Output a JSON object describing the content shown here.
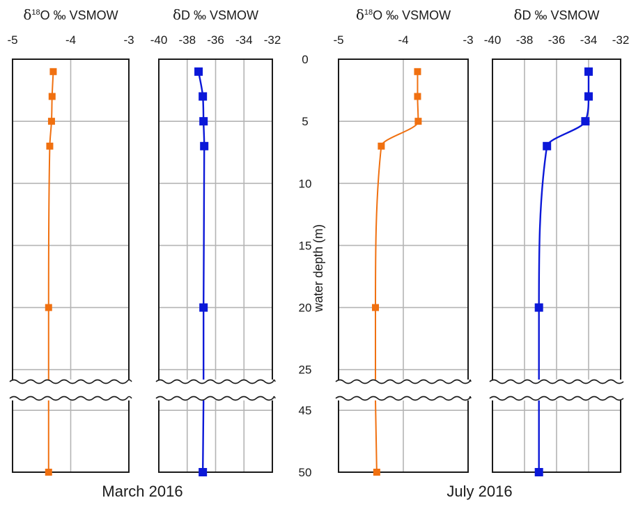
{
  "chart_data": {
    "type": "line",
    "y_axis": {
      "label": "water depth (m)",
      "upper_ticks": [
        "0",
        "5",
        "10",
        "15",
        "20",
        "25"
      ],
      "lower_ticks": [
        "45",
        "50"
      ],
      "upper_range": [
        0,
        25.8
      ],
      "lower_range": [
        44.2,
        50
      ],
      "broken": true,
      "inverted": true
    },
    "groups": [
      {
        "label": "March 2016",
        "panels": [
          {
            "title_prefix": "δ",
            "title_sup": "18",
            "title_suffix": "O ‰ VSMOW",
            "xlim": [
              -5,
              -3
            ],
            "xticks": [
              "-5",
              "-4",
              "-3"
            ],
            "color": "#f07010",
            "marker": "square-small",
            "depth": [
              1,
              3,
              5,
              7,
              20,
              50
            ],
            "values": [
              -4.3,
              -4.32,
              -4.33,
              -4.36,
              -4.38,
              -4.38
            ]
          },
          {
            "title_prefix": "δ",
            "title_sup": "",
            "title_suffix": "D ‰ VSMOW",
            "xlim": [
              -40,
              -32
            ],
            "xticks": [
              "-40",
              "-38",
              "-36",
              "-34",
              "-32"
            ],
            "color": "#0b18d8",
            "marker": "square",
            "depth": [
              1,
              3,
              5,
              7,
              20,
              50
            ],
            "values": [
              -37.2,
              -36.9,
              -36.85,
              -36.8,
              -36.85,
              -36.9
            ]
          }
        ]
      },
      {
        "label": "July 2016",
        "panels": [
          {
            "title_prefix": "δ",
            "title_sup": "18",
            "title_suffix": "O ‰ VSMOW",
            "xlim": [
              -5,
              -3
            ],
            "xticks": [
              "-5",
              "-4",
              "-3"
            ],
            "color": "#f07010",
            "marker": "square-small",
            "depth": [
              1,
              3,
              5,
              7,
              20,
              50
            ],
            "values": [
              -3.78,
              -3.78,
              -3.77,
              -4.34,
              -4.43,
              -4.41
            ]
          },
          {
            "title_prefix": "δ",
            "title_sup": "",
            "title_suffix": "D ‰ VSMOW",
            "xlim": [
              -40,
              -32
            ],
            "xticks": [
              "-40",
              "-38",
              "-36",
              "-34",
              "-32"
            ],
            "color": "#0b18d8",
            "marker": "square",
            "depth": [
              1,
              3,
              5,
              7,
              20,
              50
            ],
            "values": [
              -34,
              -34,
              -34.2,
              -36.6,
              -37.1,
              -37.1
            ]
          }
        ]
      }
    ],
    "grid": true
  }
}
